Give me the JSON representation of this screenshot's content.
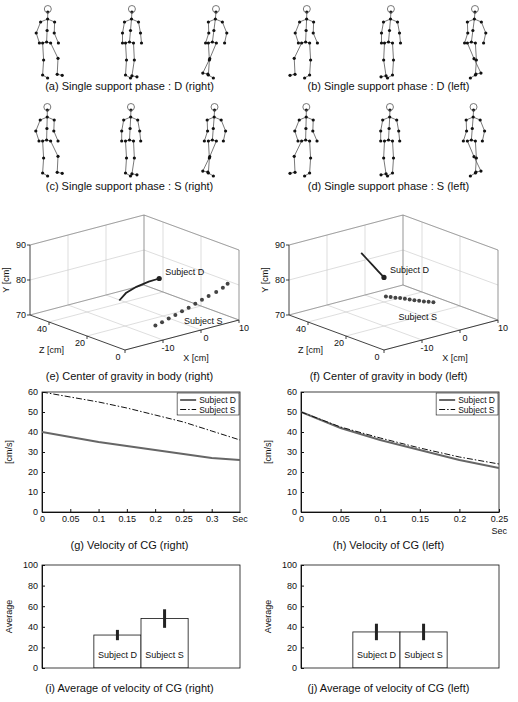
{
  "chart_data": [
    {
      "type": "image",
      "title": "(a) Single support phase : D (right)"
    },
    {
      "type": "image",
      "title": "(b) Single support phase : D (left)"
    },
    {
      "type": "image",
      "title": "(c) Single support phase : S (right)"
    },
    {
      "type": "image",
      "title": "(d) Single support phase : S (left)"
    },
    {
      "type": "line3d",
      "title": "(e) Center of gravity in body (right)",
      "x_label": "X [cm]",
      "y_label": "Y [cm]",
      "z_label": "Z [cm]",
      "xlim": [
        -20,
        10
      ],
      "xticks": [
        -10,
        0,
        10
      ],
      "ylim": [
        70,
        90
      ],
      "yticks": [
        70,
        80,
        90
      ],
      "zlim": [
        0,
        50
      ],
      "zticks": [
        0,
        20,
        40
      ],
      "grid": true,
      "series": [
        {
          "name": "Subject D",
          "color": "#222222",
          "marker": "end",
          "line_style": "solid",
          "x": [
            -9,
            -7.5,
            -5.5,
            -3,
            -1
          ],
          "y": [
            76,
            77.8,
            79.3,
            80.4,
            81
          ],
          "z": [
            25,
            24.5,
            23,
            21.5,
            20
          ]
        },
        {
          "name": "Subject S",
          "color": "#444444",
          "marker": "circle",
          "line_style": "none",
          "x": [
            -8,
            -6.5,
            -5,
            -3.5,
            -2,
            -0.5,
            1,
            2.5,
            4,
            5.5,
            7,
            8
          ],
          "y": [
            72,
            72.6,
            73.3,
            74,
            74.7,
            75.4,
            76.2,
            77,
            77.8,
            78.7,
            79.6,
            80.5
          ],
          "z": [
            8,
            7.5,
            7,
            6.5,
            6,
            5.5,
            5,
            4.5,
            4,
            3,
            2.5,
            2
          ]
        }
      ]
    },
    {
      "type": "line3d",
      "title": "(f) Center of gravity in body (left)",
      "x_label": "X [cm]",
      "y_label": "Y [cm]",
      "z_label": "Z [cm]",
      "xlim": [
        -20,
        10
      ],
      "xticks": [
        -10,
        0,
        10
      ],
      "ylim": [
        70,
        90
      ],
      "yticks": [
        70,
        80,
        90
      ],
      "zlim": [
        0,
        50
      ],
      "zticks": [
        0,
        20,
        40
      ],
      "grid": true,
      "series": [
        {
          "name": "Subject D",
          "color": "#222222",
          "marker": "end",
          "line_style": "solid",
          "x": [
            -10,
            -9.5,
            -9,
            -8.5,
            -8
          ],
          "y": [
            88.5,
            87,
            85.5,
            84,
            82.5
          ],
          "z": [
            32,
            30,
            28,
            26,
            24
          ]
        },
        {
          "name": "Subject S",
          "color": "#444444",
          "marker": "circle",
          "line_style": "none",
          "x": [
            -12,
            -11,
            -10,
            -9,
            -8,
            -7,
            -6,
            -5,
            -4,
            -3,
            -2
          ],
          "y": [
            80,
            79.7,
            79.3,
            79,
            78.6,
            78.2,
            77.8,
            77.5,
            77.1,
            76.8,
            76.5
          ],
          "z": [
            15,
            14.5,
            14,
            13.5,
            13,
            12.5,
            12,
            11.5,
            11,
            10.5,
            10
          ]
        }
      ]
    },
    {
      "type": "line",
      "title": "(g) Velocity of CG (right)",
      "x_label": "Sec",
      "y_label": "[cm/s]",
      "x": [
        0,
        0.05,
        0.1,
        0.15,
        0.2,
        0.25,
        0.3,
        0.35
      ],
      "xlim": [
        0,
        0.35
      ],
      "xticks": [
        0,
        0.05,
        0.1,
        0.15,
        0.2,
        0.25,
        0.3
      ],
      "ylim": [
        0,
        60
      ],
      "yticks": [
        0,
        10,
        20,
        30,
        40,
        50,
        60
      ],
      "legend": "upper right",
      "grid": false,
      "series": [
        {
          "name": "Subject D",
          "color": "#666666",
          "line_style": "solid",
          "values": [
            40,
            37.5,
            35,
            33,
            31,
            29,
            27,
            26
          ]
        },
        {
          "name": "Subject S",
          "color": "#111111",
          "line_style": "dashdot",
          "values": [
            60,
            57.5,
            55,
            52,
            48.5,
            45,
            40.5,
            36
          ]
        }
      ]
    },
    {
      "type": "line",
      "title": "(h) Velocity of CG (left)",
      "x_label": "Sec",
      "y_label": "[cm/s]",
      "x": [
        0,
        0.05,
        0.1,
        0.15,
        0.2,
        0.25
      ],
      "xlim": [
        0,
        0.25
      ],
      "xticks": [
        0,
        0.05,
        0.1,
        0.15,
        0.2,
        0.25
      ],
      "ylim": [
        0,
        60
      ],
      "yticks": [
        0,
        10,
        20,
        30,
        40,
        50,
        60
      ],
      "legend": "upper right",
      "grid": false,
      "series": [
        {
          "name": "Subject D",
          "color": "#666666",
          "line_style": "solid",
          "values": [
            50,
            42,
            36,
            31,
            26,
            22
          ]
        },
        {
          "name": "Subject S",
          "color": "#111111",
          "line_style": "dashdot",
          "values": [
            50,
            42.5,
            37,
            32,
            27.5,
            24
          ]
        }
      ]
    },
    {
      "type": "bar",
      "title": "(i) Average of velocity of CG (right)",
      "y_label": "Average",
      "categories": [
        "Subject D",
        "Subject S"
      ],
      "values": [
        32,
        48
      ],
      "errors": [
        5,
        9
      ],
      "ylim": [
        0,
        100
      ],
      "yticks": [
        0,
        20,
        40,
        60,
        80,
        100
      ],
      "color": "#ffffff",
      "tick_labels": "y",
      "grid": false
    },
    {
      "type": "bar",
      "title": "(j) Average of velocity of CG (left)",
      "y_label": "Average",
      "categories": [
        "Subject D",
        "Subject S"
      ],
      "values": [
        35,
        35
      ],
      "errors": [
        8,
        8
      ],
      "ylim": [
        0,
        100
      ],
      "yticks": [
        0,
        20,
        40,
        60,
        80,
        100
      ],
      "color": "#ffffff",
      "tick_labels": "y",
      "grid": false
    }
  ]
}
